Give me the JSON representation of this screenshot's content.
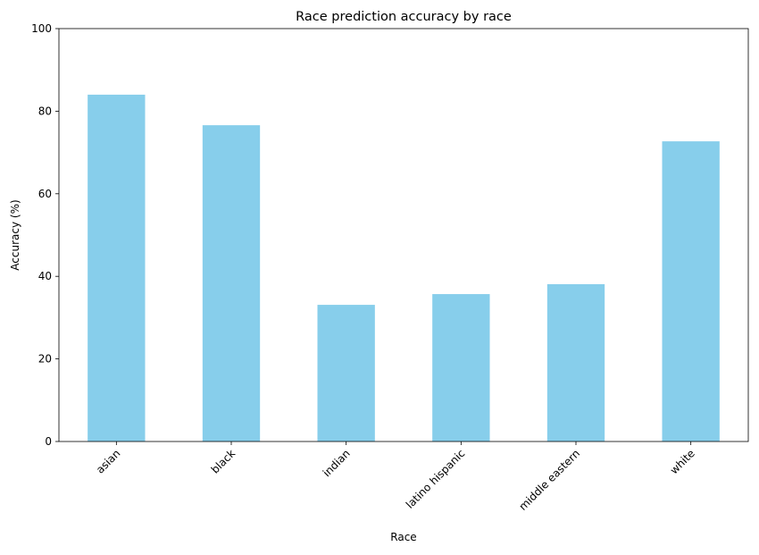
{
  "chart_data": {
    "type": "bar",
    "title": "Race prediction accuracy by race",
    "xlabel": "Race",
    "ylabel": "Accuracy (%)",
    "categories": [
      "asian",
      "black",
      "indian",
      "latino hispanic",
      "middle eastern",
      "white"
    ],
    "values": [
      84.0,
      76.6,
      33.1,
      35.7,
      38.1,
      72.7
    ],
    "ylim": [
      0,
      100
    ],
    "yticks": [
      0,
      20,
      40,
      60,
      80,
      100
    ],
    "bar_color": "#87CEEB",
    "grid": false,
    "legend": "none"
  }
}
